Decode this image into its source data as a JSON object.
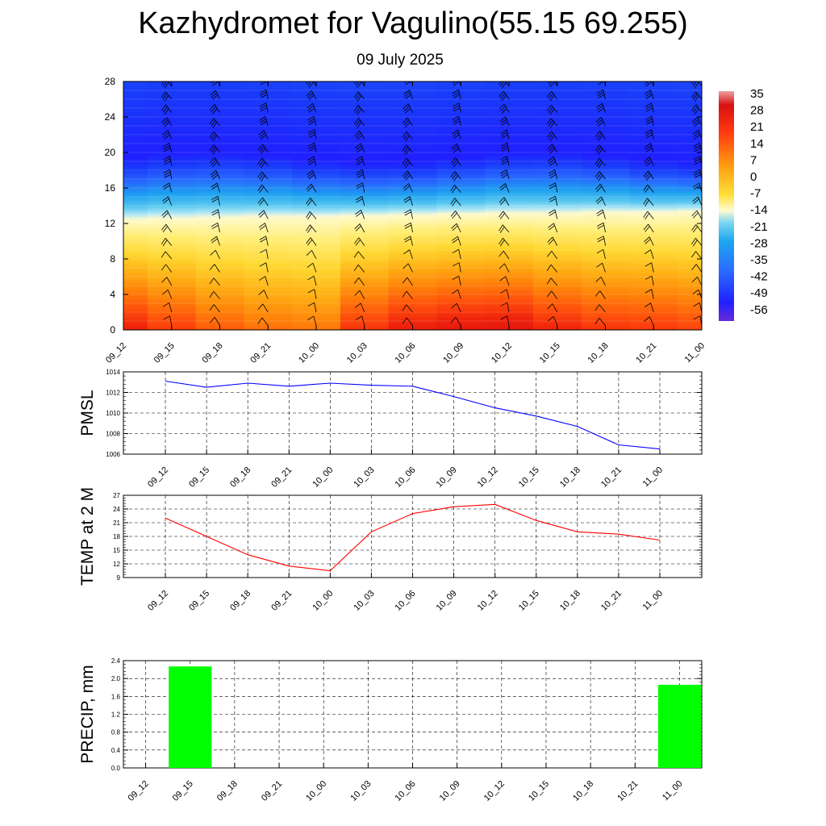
{
  "header": {
    "title": "Kazhydromet for Vagulino(55.15 69.255)",
    "subtitle": "09 July 2025"
  },
  "colors": {
    "pmsl_line": "#0000ff",
    "temp_line": "#ff0000",
    "precip_bar": "#00ff00",
    "barbs": "#000000"
  },
  "colorbar": {
    "labels": [
      "35",
      "28",
      "21",
      "14",
      "7",
      "0",
      "-7",
      "-14",
      "-21",
      "-28",
      "-35",
      "-42",
      "-49",
      "-56"
    ]
  },
  "chart_data": [
    {
      "type": "heatmap",
      "panel": "upper-air",
      "description_of_encoding": "",
      "x_categories": [
        "09_12",
        "09_15",
        "09_18",
        "09_21",
        "10_00",
        "10_03",
        "10_06",
        "10_09",
        "10_12",
        "10_15",
        "10_18",
        "10_21",
        "11_00"
      ],
      "y_ticks": [
        "0",
        "4",
        "8",
        "12",
        "16",
        "20",
        "24",
        "28"
      ],
      "ylim": [
        0,
        28
      ],
      "color_scale": [
        -56,
        35
      ],
      "surface_temperature_by_time": [
        22,
        18,
        14,
        11.5,
        10.5,
        19,
        23,
        24.5,
        25,
        21.5,
        19,
        18.5,
        17
      ],
      "freezing_level": [
        12.5,
        12.6,
        12.7,
        12.8,
        12.8,
        12.9,
        13.0,
        13.1,
        13.2,
        13.2,
        13.3,
        13.3,
        13.4
      ],
      "grid": true
    },
    {
      "type": "line",
      "panel": "pmsl",
      "ylabel": "PMSL",
      "categories": [
        "09_12",
        "09_15",
        "09_18",
        "09_21",
        "10_00",
        "10_03",
        "10_06",
        "10_09",
        "10_12",
        "10_15",
        "10_18",
        "10_21",
        "11_00"
      ],
      "y_ticks": [
        "1006",
        "1008",
        "1010",
        "1012",
        "1014"
      ],
      "ylim": [
        1006,
        1014
      ],
      "series": [
        {
          "values": [
            1013.1,
            1012.5,
            1012.9,
            1012.6,
            1012.9,
            1012.7,
            1012.6,
            1011.6,
            1010.5,
            1009.7,
            1008.7,
            1006.9,
            1006.5
          ]
        }
      ],
      "grid": true
    },
    {
      "type": "line",
      "panel": "temp2m",
      "ylabel": "TEMP at 2 M",
      "categories": [
        "09_12",
        "09_15",
        "09_18",
        "09_21",
        "10_00",
        "10_03",
        "10_06",
        "10_09",
        "10_12",
        "10_15",
        "10_18",
        "10_21",
        "11_00"
      ],
      "y_ticks": [
        "9",
        "12",
        "15",
        "18",
        "21",
        "24",
        "27"
      ],
      "ylim": [
        9,
        27
      ],
      "series": [
        {
          "values": [
            22.0,
            18.0,
            14.0,
            11.5,
            10.5,
            19.0,
            23.0,
            24.5,
            25.0,
            21.5,
            19.0,
            18.5,
            17.2
          ]
        }
      ],
      "grid": true
    },
    {
      "type": "bar",
      "panel": "precip",
      "ylabel": "PRECIP, mm",
      "categories": [
        "09_12",
        "09_15",
        "09_18",
        "09_21",
        "10_00",
        "10_03",
        "10_06",
        "10_09",
        "10_12",
        "10_15",
        "10_18",
        "10_21",
        "11_00"
      ],
      "y_ticks": [
        "0.0",
        "0.4",
        "0.8",
        "1.2",
        "1.6",
        "2.0",
        "2.4"
      ],
      "ylim": [
        0,
        2.4
      ],
      "values": [
        0,
        2.27,
        0,
        0,
        0,
        0,
        0,
        0,
        0,
        0,
        0,
        0,
        1.86
      ],
      "grid": true
    }
  ]
}
